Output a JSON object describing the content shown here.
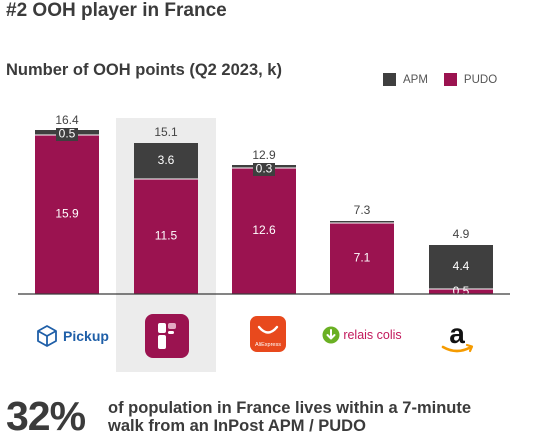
{
  "headline": "#2 OOH player in France",
  "chart_data": {
    "type": "bar",
    "stacked": true,
    "title": "Number of OOH points (Q2 2023, k)",
    "categories": [
      "Pickup",
      "InPost",
      "AliExpress",
      "relais colis",
      "Amazon"
    ],
    "highlighted_category": "InPost",
    "series": [
      {
        "name": "PUDO",
        "color": "#9b1350",
        "values": [
          15.9,
          11.5,
          12.6,
          7.1,
          0.5
        ]
      },
      {
        "name": "APM",
        "color": "#3f3f3f",
        "values": [
          0.5,
          3.6,
          0.3,
          0.2,
          4.4
        ]
      }
    ],
    "totals": [
      16.4,
      15.1,
      12.9,
      7.3,
      4.9
    ],
    "segment_labels": {
      "PUDO": [
        "15.9",
        "11.5",
        "12.6",
        "7.1",
        "0.5"
      ],
      "APM": [
        "0.5",
        "3.6",
        "0.3",
        "",
        "4.4"
      ]
    },
    "ylim": [
      0,
      16.4
    ],
    "grid": false,
    "legend_position": "top-right"
  },
  "logos": {
    "pickup": {
      "text": "Pickup",
      "icon": "box-icon",
      "color": "#1f5fa8"
    },
    "inpost": {
      "icon": "inpost-icon",
      "color": "#9b1350"
    },
    "aliexpress": {
      "text": "AliExpress",
      "icon": "shopping-bag-icon",
      "color": "#e8491d"
    },
    "relais": {
      "text": "relais colis",
      "icon": "arrow-down-circle-icon",
      "color": "#6ab023",
      "text_color": "#c2185b"
    },
    "amazon": {
      "text": "a",
      "icon": "amazon-smile-icon"
    }
  },
  "footer": {
    "percent": "32%",
    "text_line1": "of population in France lives within a 7-minute",
    "text_line2": "walk from an InPost APM / PUDO"
  }
}
